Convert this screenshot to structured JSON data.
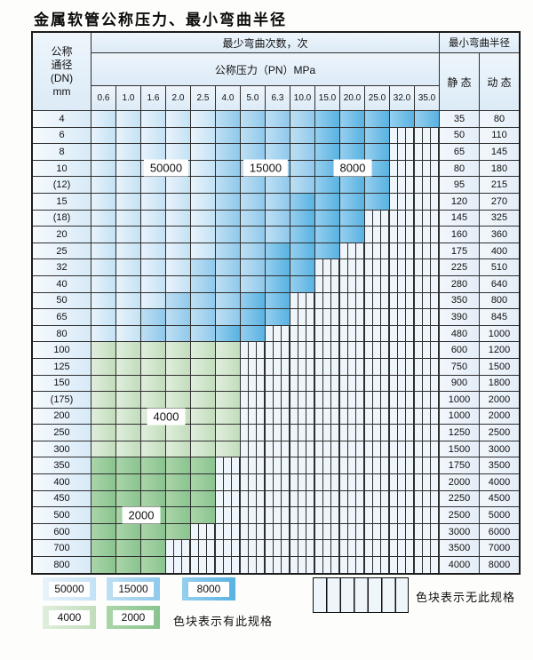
{
  "title": "金属软管公称压力、最小弯曲半径",
  "table": {
    "dn_header_lines": [
      "公称",
      "通径",
      "(DN)",
      "mm"
    ],
    "bend_times_header": "最少弯曲次数，次",
    "pressure_header": "公称压力（PN）MPa",
    "pressure_values": [
      "0.6",
      "1.0",
      "1.6",
      "2.0",
      "2.5",
      "4.0",
      "5.0",
      "6.3",
      "10.0",
      "15.0",
      "20.0",
      "25.0",
      "32.0",
      "35.0"
    ],
    "radius_header": "最小弯曲半径",
    "static_header": "静 态",
    "dynamic_header": "动 态",
    "category_legend": {
      "L": "50000",
      "M": "15000",
      "D": "8000",
      "G": "4000",
      "H": "2000",
      "X": "no-spec-hatch"
    },
    "rows": [
      {
        "dn": "4",
        "cats": "LLLLLMMMMDDDDD",
        "static": "35",
        "dynamic": "80"
      },
      {
        "dn": "6",
        "cats": "LLLLLMMMMDDDXX",
        "static": "50",
        "dynamic": "110"
      },
      {
        "dn": "8",
        "cats": "LLLLLMMMMDDDXX",
        "static": "65",
        "dynamic": "145"
      },
      {
        "dn": "10",
        "cats": "LLLLLMMMMDDDXX",
        "static": "80",
        "dynamic": "180"
      },
      {
        "dn": "(12)",
        "cats": "LLLLLMMMMDDDXX",
        "static": "95",
        "dynamic": "215"
      },
      {
        "dn": "15",
        "cats": "LLLLLMMMDDDDXX",
        "static": "120",
        "dynamic": "270"
      },
      {
        "dn": "(18)",
        "cats": "LLLLLMMMDDDXXX",
        "static": "145",
        "dynamic": "325"
      },
      {
        "dn": "20",
        "cats": "LLLLLMMMDDDXXX",
        "static": "160",
        "dynamic": "360"
      },
      {
        "dn": "25",
        "cats": "LLLLLMMDDDXXXX",
        "static": "175",
        "dynamic": "400"
      },
      {
        "dn": "32",
        "cats": "LLLLMMMDDXXXXX",
        "static": "225",
        "dynamic": "510"
      },
      {
        "dn": "40",
        "cats": "LLLLMMMDDXXXXX",
        "static": "280",
        "dynamic": "640"
      },
      {
        "dn": "50",
        "cats": "LLLMMMDDXXXXXX",
        "static": "350",
        "dynamic": "800"
      },
      {
        "dn": "65",
        "cats": "LLMMMMDDXXXXXX",
        "static": "390",
        "dynamic": "845"
      },
      {
        "dn": "80",
        "cats": "LLMMMDDXXXXXXX",
        "static": "480",
        "dynamic": "1000"
      },
      {
        "dn": "100",
        "cats": "GGGGGGXXXXXXXX",
        "static": "600",
        "dynamic": "1200"
      },
      {
        "dn": "125",
        "cats": "GGGGGGXXXXXXXX",
        "static": "750",
        "dynamic": "1500"
      },
      {
        "dn": "150",
        "cats": "GGGGGGXXXXXXXX",
        "static": "900",
        "dynamic": "1800"
      },
      {
        "dn": "(175)",
        "cats": "GGGGGGXXXXXXXX",
        "static": "1000",
        "dynamic": "2000"
      },
      {
        "dn": "200",
        "cats": "GGGGGGXXXXXXXX",
        "static": "1000",
        "dynamic": "2000"
      },
      {
        "dn": "250",
        "cats": "GGGGGGXXXXXXXX",
        "static": "1250",
        "dynamic": "2500"
      },
      {
        "dn": "300",
        "cats": "GGGGGGXXXXXXXX",
        "static": "1500",
        "dynamic": "3000"
      },
      {
        "dn": "350",
        "cats": "HHHHHXXXXXXXXX",
        "static": "1750",
        "dynamic": "3500"
      },
      {
        "dn": "400",
        "cats": "HHHHHXXXXXXXXX",
        "static": "2000",
        "dynamic": "4000"
      },
      {
        "dn": "450",
        "cats": "HHHHHXXXXXXXXX",
        "static": "2250",
        "dynamic": "4500"
      },
      {
        "dn": "500",
        "cats": "HHHHHXXXXXXXXX",
        "static": "2500",
        "dynamic": "5000"
      },
      {
        "dn": "600",
        "cats": "HHHHXXXXXXXXXX",
        "static": "3000",
        "dynamic": "6000"
      },
      {
        "dn": "700",
        "cats": "HHHXXXXXXXXXXX",
        "static": "3500",
        "dynamic": "7000"
      },
      {
        "dn": "800",
        "cats": "HHHXXXXXXXXXXX",
        "static": "4000",
        "dynamic": "8000"
      }
    ]
  },
  "annotations": [
    "50000",
    "15000",
    "8000",
    "4000",
    "2000"
  ],
  "legend": {
    "has_spec_items": [
      {
        "label": "50000",
        "type": "L"
      },
      {
        "label": "15000",
        "type": "M"
      },
      {
        "label": "8000",
        "type": "D"
      },
      {
        "label": "4000",
        "type": "G"
      },
      {
        "label": "2000",
        "type": "H"
      }
    ],
    "has_spec_text": "色块表示有此规格",
    "no_spec_text": "色块表示无此规格"
  },
  "colors": {
    "light_blue_50000": [
      "#e9f3fb",
      "#c3e2f5"
    ],
    "medium_blue_15000": [
      "#bfdff3",
      "#8fc9ec"
    ],
    "dark_blue_8000": [
      "#96cfee",
      "#58b2e2"
    ],
    "light_green_4000": [
      "#e0eedd",
      "#c2ddbb"
    ],
    "dark_green_2000": [
      "#abd5a9",
      "#89c48f"
    ],
    "hatch_bg": "#eef5fb",
    "grid_line": "#2f2f2f",
    "dn_col": [
      "#f6fafd",
      "#d8eaf7"
    ],
    "val_col": [
      "#f2f7fc",
      "#e4eef8"
    ],
    "header_bg": [
      "#eef5fb",
      "#dcebf7"
    ]
  }
}
